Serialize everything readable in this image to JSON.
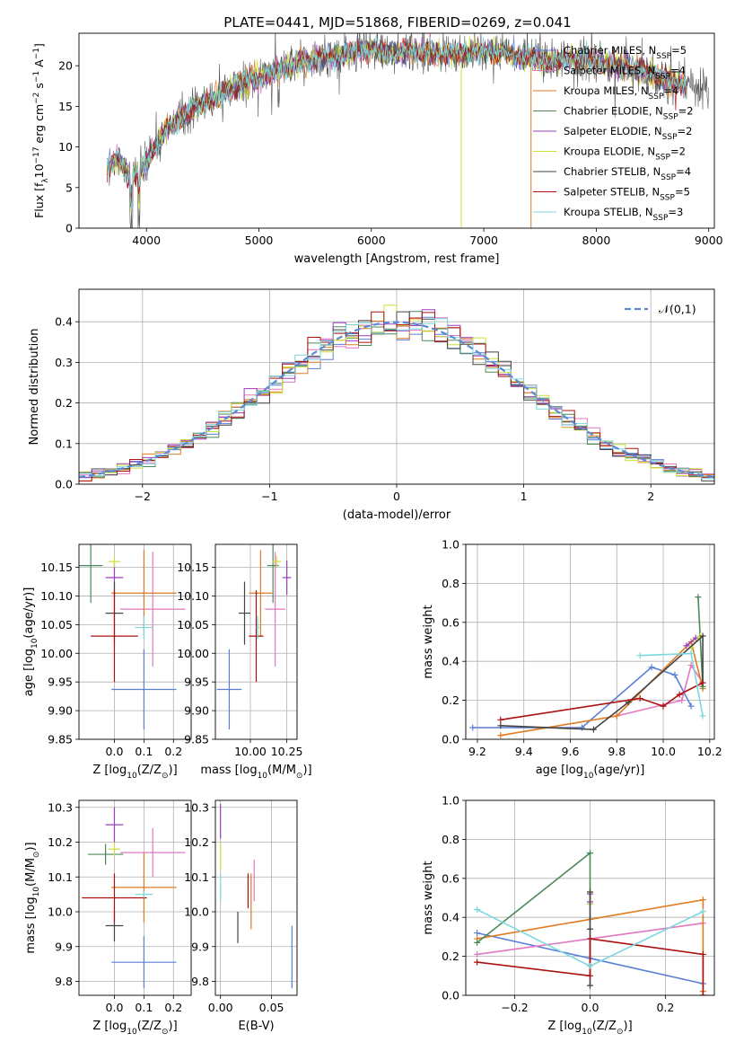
{
  "figure_title": "PLATE=0441, MJD=51868, FIBERID=0269, z=0.041",
  "colors": {
    "Chabrier MILES": "#5a7fd6",
    "Salpeter MILES": "#e377c2",
    "Kroupa MILES": "#e07b20",
    "Chabrier ELODIE": "#4a8a5a",
    "Salpeter ELODIE": "#9a3fc0",
    "Kroupa ELODIE": "#cde037",
    "Chabrier STELIB": "#444444",
    "Salpeter STELIB": "#aa1111",
    "Kroupa STELIB": "#7dd8dd"
  },
  "chart_data": [
    {
      "id": "spectrum",
      "type": "line",
      "title": "PLATE=0441, MJD=51868, FIBERID=0269, z=0.041",
      "xlabel": "wavelength [Angstrom, rest frame]",
      "ylabel_parts": [
        "Flux [f",
        "λ",
        "10",
        "−17",
        " erg cm",
        "−2",
        " s",
        "−1",
        " A",
        "−1",
        "]"
      ],
      "xlim": [
        3400,
        9050
      ],
      "ylim": [
        0,
        24
      ],
      "xticks": [
        4000,
        5000,
        6000,
        7000,
        8000,
        9000
      ],
      "yticks": [
        0,
        5,
        10,
        15,
        20
      ],
      "grid": false,
      "legend_position": "top-right",
      "legend": [
        {
          "label": "Chabrier MILES, N",
          "sub": "SSP",
          "eq": "=5",
          "series": "Chabrier MILES"
        },
        {
          "label": "Salpeter MILES, N",
          "sub": "SSP",
          "eq": "=4",
          "series": "Salpeter MILES"
        },
        {
          "label": "Kroupa MILES, N",
          "sub": "SSP",
          "eq": "=4",
          "series": "Kroupa MILES"
        },
        {
          "label": "Chabrier ELODIE, N",
          "sub": "SSP",
          "eq": "=2",
          "series": "Chabrier ELODIE"
        },
        {
          "label": "Salpeter ELODIE, N",
          "sub": "SSP",
          "eq": "=2",
          "series": "Salpeter ELODIE"
        },
        {
          "label": "Kroupa ELODIE, N",
          "sub": "SSP",
          "eq": "=2",
          "series": "Kroupa ELODIE"
        },
        {
          "label": "Chabrier STELIB, N",
          "sub": "SSP",
          "eq": "=4",
          "series": "Chabrier STELIB"
        },
        {
          "label": "Salpeter STELIB, N",
          "sub": "SSP",
          "eq": "=5",
          "series": "Salpeter STELIB"
        },
        {
          "label": "Kroupa STELIB, N",
          "sub": "SSP",
          "eq": "=3",
          "series": "Kroupa STELIB"
        }
      ],
      "data_series": {
        "name": "data",
        "color": "#555555"
      },
      "continuum": {
        "x": [
          3650,
          3750,
          3850,
          3950,
          4050,
          4200,
          4400,
          4600,
          4800,
          5000,
          5200,
          5400,
          5600,
          5800,
          6000,
          6200,
          6400,
          6600,
          6800,
          7000,
          7200,
          7400,
          7600,
          7800,
          8000,
          8200,
          8400,
          8600,
          8800
        ],
        "y": [
          7.5,
          8.5,
          6.5,
          7.0,
          9.5,
          12.5,
          14.5,
          16.0,
          17.5,
          18.5,
          19.5,
          20.5,
          21.0,
          21.5,
          22.0,
          21.5,
          21.8,
          21.5,
          21.5,
          21.8,
          21.5,
          21.0,
          20.5,
          20.8,
          20.5,
          19.8,
          19.5,
          18.5,
          17.5
        ]
      },
      "model_x_range": [
        3650,
        8800
      ],
      "data_x_range": [
        3650,
        9000
      ],
      "dropouts": [
        {
          "series": "Kroupa ELODIE",
          "x": 6800,
          "y_min": 0
        },
        {
          "series": "Kroupa MILES",
          "x": 7420,
          "y_min": 0
        }
      ]
    },
    {
      "id": "residuals",
      "type": "bar",
      "style": "step",
      "xlabel": "(data-model)/error",
      "ylabel": "Normed distribution",
      "xlim": [
        -2.5,
        2.5
      ],
      "ylim": [
        0,
        0.48
      ],
      "xticks": [
        -2,
        -1,
        0,
        1,
        2
      ],
      "yticks": [
        0.0,
        0.1,
        0.2,
        0.3,
        0.4
      ],
      "grid": true,
      "bin_width": 0.1,
      "legend_position": "top-right",
      "legend": [
        {
          "label": "𝒩(0,1)",
          "style": "dashed",
          "color": "#5a8ad6"
        }
      ],
      "gaussian": {
        "mean": 0,
        "sigma": 1
      }
    },
    {
      "id": "age-vs-Z",
      "type": "scatter",
      "xlabel_parts": [
        "Z [log",
        "10",
        "(Z/Z",
        "⊙",
        ")]"
      ],
      "ylabel_parts": [
        "age  [log",
        "10",
        "(age/yr)]"
      ],
      "xlim": [
        -0.12,
        0.26
      ],
      "ylim": [
        9.85,
        10.19
      ],
      "xticks": [
        0.0,
        0.1,
        0.2
      ],
      "yticks": [
        9.85,
        9.9,
        9.95,
        10.0,
        10.05,
        10.1,
        10.15
      ],
      "grid": true,
      "points": [
        {
          "series": "Chabrier MILES",
          "x": 0.1,
          "xerr": 0.11,
          "y": 9.937,
          "yerr": 0.07
        },
        {
          "series": "Salpeter MILES",
          "x": 0.13,
          "xerr": 0.11,
          "y": 10.077,
          "yerr": 0.1
        },
        {
          "series": "Kroupa MILES",
          "x": 0.1,
          "xerr": 0.11,
          "y": 10.105,
          "yerr": 0.075
        },
        {
          "series": "Chabrier ELODIE",
          "x": -0.08,
          "xerr": 0.04,
          "y": 10.153,
          "yerr": 0.065
        },
        {
          "series": "Salpeter ELODIE",
          "x": 0.0,
          "xerr": 0.03,
          "y": 10.132,
          "yerr": 0.03
        },
        {
          "series": "Kroupa ELODIE",
          "x": 0.0,
          "xerr": 0.02,
          "y": 10.16,
          "yerr": 0.01
        },
        {
          "series": "Chabrier STELIB",
          "x": 0.0,
          "xerr": 0.03,
          "y": 10.07,
          "yerr": 0.055
        },
        {
          "series": "Salpeter STELIB",
          "x": 0.0,
          "xerr": 0.08,
          "y": 10.03,
          "yerr": 0.08
        },
        {
          "series": "Kroupa STELIB",
          "x": 0.1,
          "xerr": 0.03,
          "y": 10.045,
          "yerr": 0.02
        }
      ]
    },
    {
      "id": "age-vs-mass",
      "type": "scatter",
      "xlabel_parts": [
        "mass [log",
        "10",
        "(M/M",
        "⊙",
        ")]"
      ],
      "ylabel_parts": [],
      "xlim": [
        9.76,
        10.32
      ],
      "ylim": [
        9.85,
        10.19
      ],
      "xticks": [
        10.0,
        10.25
      ],
      "xtick_labels": [
        "10.00",
        "10.25"
      ],
      "yticks": [
        9.85,
        9.9,
        9.95,
        10.0,
        10.05,
        10.1,
        10.15
      ],
      "grid": true,
      "points": [
        {
          "series": "Chabrier MILES",
          "x": 9.855,
          "xerr": 0.085,
          "y": 9.937,
          "yerr": 0.07
        },
        {
          "series": "Salpeter MILES",
          "x": 10.17,
          "xerr": 0.07,
          "y": 10.077,
          "yerr": 0.1
        },
        {
          "series": "Kroupa MILES",
          "x": 10.07,
          "xerr": 0.08,
          "y": 10.105,
          "yerr": 0.075
        },
        {
          "series": "Chabrier ELODIE",
          "x": 10.155,
          "xerr": 0.04,
          "y": 10.153,
          "yerr": 0.065
        },
        {
          "series": "Salpeter ELODIE",
          "x": 10.25,
          "xerr": 0.03,
          "y": 10.132,
          "yerr": 0.03
        },
        {
          "series": "Kroupa ELODIE",
          "x": 10.18,
          "xerr": 0.03,
          "y": 10.16,
          "yerr": 0.01
        },
        {
          "series": "Chabrier STELIB",
          "x": 9.96,
          "xerr": 0.04,
          "y": 10.07,
          "yerr": 0.055
        },
        {
          "series": "Salpeter STELIB",
          "x": 10.04,
          "xerr": 0.05,
          "y": 10.03,
          "yerr": 0.08
        },
        {
          "series": "Kroupa STELIB",
          "x": 10.05,
          "xerr": 0.01,
          "y": 10.045,
          "yerr": 0.02
        }
      ]
    },
    {
      "id": "mass-weight-vs-age",
      "type": "line",
      "xlabel_parts": [
        "age  [log",
        "10",
        "(age/yr)]"
      ],
      "ylabel": "mass weight",
      "xlim": [
        9.15,
        10.22
      ],
      "ylim": [
        0,
        1.0
      ],
      "xticks": [
        9.2,
        9.4,
        9.6,
        9.8,
        10.0,
        10.2
      ],
      "xtick_labels": [
        "9.2",
        "9.4",
        "9.6",
        "9.8",
        "10.0",
        "10.2"
      ],
      "yticks": [
        0.0,
        0.2,
        0.4,
        0.6,
        0.8,
        1.0
      ],
      "grid": true,
      "series": [
        {
          "name": "Chabrier MILES",
          "x": [
            9.18,
            9.65,
            9.95,
            10.05,
            10.12
          ],
          "y": [
            0.06,
            0.06,
            0.37,
            0.33,
            0.17
          ]
        },
        {
          "name": "Salpeter MILES",
          "x": [
            9.8,
            10.08,
            10.12,
            10.17
          ],
          "y": [
            0.12,
            0.2,
            0.38,
            0.29
          ]
        },
        {
          "name": "Kroupa MILES",
          "x": [
            9.3,
            9.8,
            10.12,
            10.17
          ],
          "y": [
            0.02,
            0.12,
            0.5,
            0.26
          ]
        },
        {
          "name": "Chabrier ELODIE",
          "x": [
            10.15,
            10.17
          ],
          "y": [
            0.73,
            0.27
          ]
        },
        {
          "name": "Salpeter ELODIE",
          "x": [
            10.1,
            10.14
          ],
          "y": [
            0.48,
            0.52
          ]
        },
        {
          "name": "Kroupa ELODIE",
          "x": [
            10.12,
            10.16
          ],
          "y": [
            0.47,
            0.53
          ]
        },
        {
          "name": "Chabrier STELIB",
          "x": [
            9.3,
            9.7,
            9.85,
            10.17,
            10.17
          ],
          "y": [
            0.07,
            0.05,
            0.19,
            0.53,
            0.29
          ]
        },
        {
          "name": "Salpeter STELIB",
          "x": [
            9.3,
            9.9,
            10.0,
            10.07,
            10.17
          ],
          "y": [
            0.1,
            0.21,
            0.17,
            0.23,
            0.29
          ]
        },
        {
          "name": "Kroupa STELIB",
          "x": [
            9.9,
            10.12,
            10.17
          ],
          "y": [
            0.43,
            0.44,
            0.12
          ]
        }
      ]
    },
    {
      "id": "mass-vs-Z",
      "type": "scatter",
      "xlabel_parts": [
        "Z [log",
        "10",
        "(Z/Z",
        "⊙",
        ")]"
      ],
      "ylabel_parts": [
        "mass [log",
        "10",
        "(M/M",
        "⊙",
        ")]"
      ],
      "xlim": [
        -0.12,
        0.26
      ],
      "ylim": [
        9.76,
        10.32
      ],
      "xticks": [
        0.0,
        0.1,
        0.2
      ],
      "yticks": [
        9.8,
        9.9,
        10.0,
        10.1,
        10.2,
        10.3
      ],
      "grid": true,
      "points": [
        {
          "series": "Chabrier MILES",
          "x": 0.1,
          "xerr": 0.11,
          "y": 9.855,
          "yerr": 0.075
        },
        {
          "series": "Salpeter MILES",
          "x": 0.13,
          "xerr": 0.11,
          "y": 10.17,
          "yerr": 0.07
        },
        {
          "series": "Kroupa MILES",
          "x": 0.1,
          "xerr": 0.11,
          "y": 10.07,
          "yerr": 0.1
        },
        {
          "series": "Chabrier ELODIE",
          "x": -0.03,
          "xerr": 0.06,
          "y": 10.165,
          "yerr": 0.03
        },
        {
          "series": "Salpeter ELODIE",
          "x": 0.0,
          "xerr": 0.03,
          "y": 10.25,
          "yerr": 0.05
        },
        {
          "series": "Kroupa ELODIE",
          "x": 0.0,
          "xerr": 0.02,
          "y": 10.18,
          "yerr": 0.02
        },
        {
          "series": "Chabrier STELIB",
          "x": 0.0,
          "xerr": 0.03,
          "y": 9.96,
          "yerr": 0.045
        },
        {
          "series": "Salpeter STELIB",
          "x": 0.0,
          "xerr": 0.11,
          "y": 10.04,
          "yerr": 0.07
        },
        {
          "series": "Kroupa STELIB",
          "x": 0.1,
          "xerr": 0.03,
          "y": 10.05,
          "yerr": 0.01
        }
      ]
    },
    {
      "id": "mass-vs-EBV",
      "type": "scatter",
      "xlabel": "E(B-V)",
      "ylabel_parts": [],
      "xlim": [
        -0.005,
        0.075
      ],
      "ylim": [
        9.76,
        10.32
      ],
      "xticks": [
        0.0,
        0.05
      ],
      "xtick_labels": [
        "0.00",
        "0.05"
      ],
      "yticks": [
        9.8,
        9.9,
        10.0,
        10.1,
        10.2,
        10.3
      ],
      "grid": true,
      "points": [
        {
          "series": "Chabrier MILES",
          "x": 0.07,
          "xerr": 0,
          "y": 9.87,
          "yerr": 0.09
        },
        {
          "series": "Salpeter MILES",
          "x": 0.033,
          "xerr": 0,
          "y": 10.09,
          "yerr": 0.06
        },
        {
          "series": "Kroupa MILES",
          "x": 0.03,
          "xerr": 0,
          "y": 10.03,
          "yerr": 0.08
        },
        {
          "series": "Salpeter ELODIE",
          "x": 0.0,
          "xerr": 0,
          "y": 10.26,
          "yerr": 0.05
        },
        {
          "series": "Kroupa ELODIE",
          "x": 0.0,
          "xerr": 0,
          "y": 10.16,
          "yerr": 0.04
        },
        {
          "series": "Chabrier STELIB",
          "x": 0.017,
          "xerr": 0,
          "y": 9.955,
          "yerr": 0.045
        },
        {
          "series": "Salpeter STELIB",
          "x": 0.027,
          "xerr": 0,
          "y": 10.06,
          "yerr": 0.05
        },
        {
          "series": "Kroupa STELIB",
          "x": 0.0,
          "xerr": 0,
          "y": 10.07,
          "yerr": 0.04
        }
      ]
    },
    {
      "id": "mass-weight-vs-Z",
      "type": "line",
      "xlabel_parts": [
        "Z [log",
        "10",
        "(Z/Z",
        "⊙",
        ")]"
      ],
      "ylabel": "mass weight",
      "xlim": [
        -0.33,
        0.33
      ],
      "ylim": [
        0,
        1.0
      ],
      "xticks": [
        -0.2,
        0.0,
        0.2
      ],
      "xtick_labels": [
        "−0.2",
        "0.0",
        "0.2"
      ],
      "yticks": [
        0.0,
        0.2,
        0.4,
        0.6,
        0.8,
        1.0
      ],
      "grid": true,
      "series": [
        {
          "name": "Chabrier MILES",
          "x": [
            -0.3,
            0.0,
            0.3
          ],
          "y": [
            0.32,
            0.19,
            0.06
          ]
        },
        {
          "name": "Salpeter MILES",
          "x": [
            -0.3,
            0.0,
            0.3
          ],
          "y": [
            0.21,
            0.29,
            0.37
          ]
        },
        {
          "name": "Kroupa MILES",
          "x": [
            -0.3,
            0.0,
            0.3,
            0.3
          ],
          "y": [
            0.29,
            0.39,
            0.49,
            0.02
          ]
        },
        {
          "name": "Chabrier ELODIE",
          "x": [
            -0.3,
            0.0,
            0.0
          ],
          "y": [
            0.27,
            0.73,
            0.47
          ]
        },
        {
          "name": "Salpeter ELODIE",
          "x": [
            0.0,
            0.0
          ],
          "y": [
            0.48,
            0.52
          ]
        },
        {
          "name": "Kroupa ELODIE",
          "x": [
            0.0,
            0.0
          ],
          "y": [
            0.47,
            0.53
          ]
        },
        {
          "name": "Chabrier STELIB",
          "x": [
            0.0,
            0.0,
            0.0
          ],
          "y": [
            0.53,
            0.34,
            0.05
          ]
        },
        {
          "name": "Salpeter STELIB",
          "x": [
            -0.3,
            0.0,
            0.0,
            0.3,
            0.3
          ],
          "y": [
            0.17,
            0.1,
            0.29,
            0.21,
            0.0
          ]
        },
        {
          "name": "Kroupa STELIB",
          "x": [
            -0.3,
            0.0,
            0.3
          ],
          "y": [
            0.44,
            0.15,
            0.43
          ]
        }
      ]
    }
  ]
}
